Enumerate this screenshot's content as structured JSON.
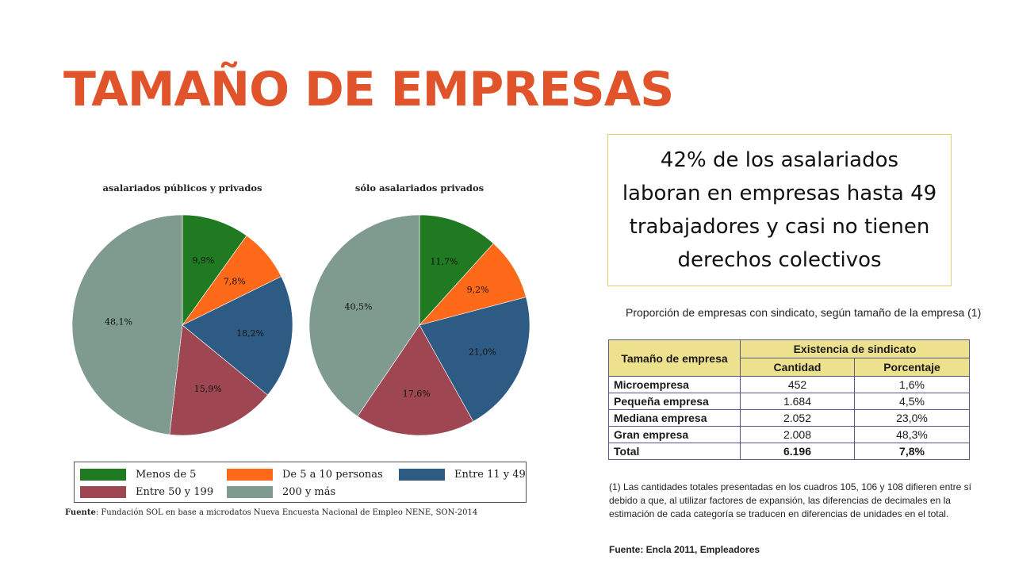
{
  "slide_title": "TAMAÑO DE EMPRESAS",
  "chart_data": [
    {
      "type": "pie",
      "title": "asalariados públicos y privados",
      "categories": [
        "Menos de 5",
        "De 5 a 10 personas",
        "Entre 11 y 49",
        "Entre 50 y 199",
        "200 y más"
      ],
      "values": [
        9.9,
        7.8,
        18.2,
        15.9,
        48.1
      ],
      "labels": [
        "9,9%",
        "7,8%",
        "18,2%",
        "15,9%",
        "48,1%"
      ],
      "colors": [
        "#1f7a22",
        "#ff6a1a",
        "#2e5b84",
        "#9e4651",
        "#7f9b90"
      ]
    },
    {
      "type": "pie",
      "title": "sólo asalariados privados",
      "categories": [
        "Menos de 5",
        "De 5 a 10 personas",
        "Entre 11 y 49",
        "Entre 50 y 199",
        "200 y más"
      ],
      "values": [
        11.7,
        9.2,
        21.0,
        17.6,
        40.5
      ],
      "labels": [
        "11,7%",
        "9,2%",
        "21,0%",
        "17,6%",
        "40,5%"
      ],
      "colors": [
        "#1f7a22",
        "#ff6a1a",
        "#2e5b84",
        "#9e4651",
        "#7f9b90"
      ]
    }
  ],
  "legend": [
    {
      "label": "Menos de 5",
      "color": "#1f7a22"
    },
    {
      "label": "De 5 a 10 personas",
      "color": "#ff6a1a"
    },
    {
      "label": "Entre 11 y 49",
      "color": "#2e5b84"
    },
    {
      "label": "Entre 50 y 199",
      "color": "#9e4651"
    },
    {
      "label": "200 y más",
      "color": "#7f9b90"
    }
  ],
  "source_left": {
    "prefix": "Fuente",
    "text": ": Fundación SOL en base a microdatos Nueva Encuesta Nacional de Empleo NENE, SON-2014"
  },
  "callout": "42% de los asalariados laboran en empresas hasta 49 trabajadores y casi no tienen derechos colectivos",
  "table": {
    "caption": "Proporción de empresas con sindicato, según tamaño de la empresa (1)",
    "header_category": "Tamaño de empresa",
    "header_group": "Existencia de sindicato",
    "header_cantidad": "Cantidad",
    "header_porcentaje": "Porcentaje",
    "rows": [
      {
        "category": "Microempresa",
        "cantidad": "452",
        "porcentaje": "1,6%"
      },
      {
        "category": "Pequeña empresa",
        "cantidad": "1.684",
        "porcentaje": "4,5%"
      },
      {
        "category": "Mediana empresa",
        "cantidad": "2.052",
        "porcentaje": "23,0%"
      },
      {
        "category": "Gran empresa",
        "cantidad": "2.008",
        "porcentaje": "48,3%"
      },
      {
        "category": "Total",
        "cantidad": "6.196",
        "porcentaje": "7,8%"
      }
    ],
    "footnote": "(1) Las cantidades totales presentadas en los cuadros 105, 106 y 108 difieren entre sí debido a que, al utilizar factores de expansión, las diferencias de decimales en la estimación de cada categoría se traducen en diferencias de unidades en el total.",
    "source": "Fuente: Encla 2011, Empleadores"
  }
}
